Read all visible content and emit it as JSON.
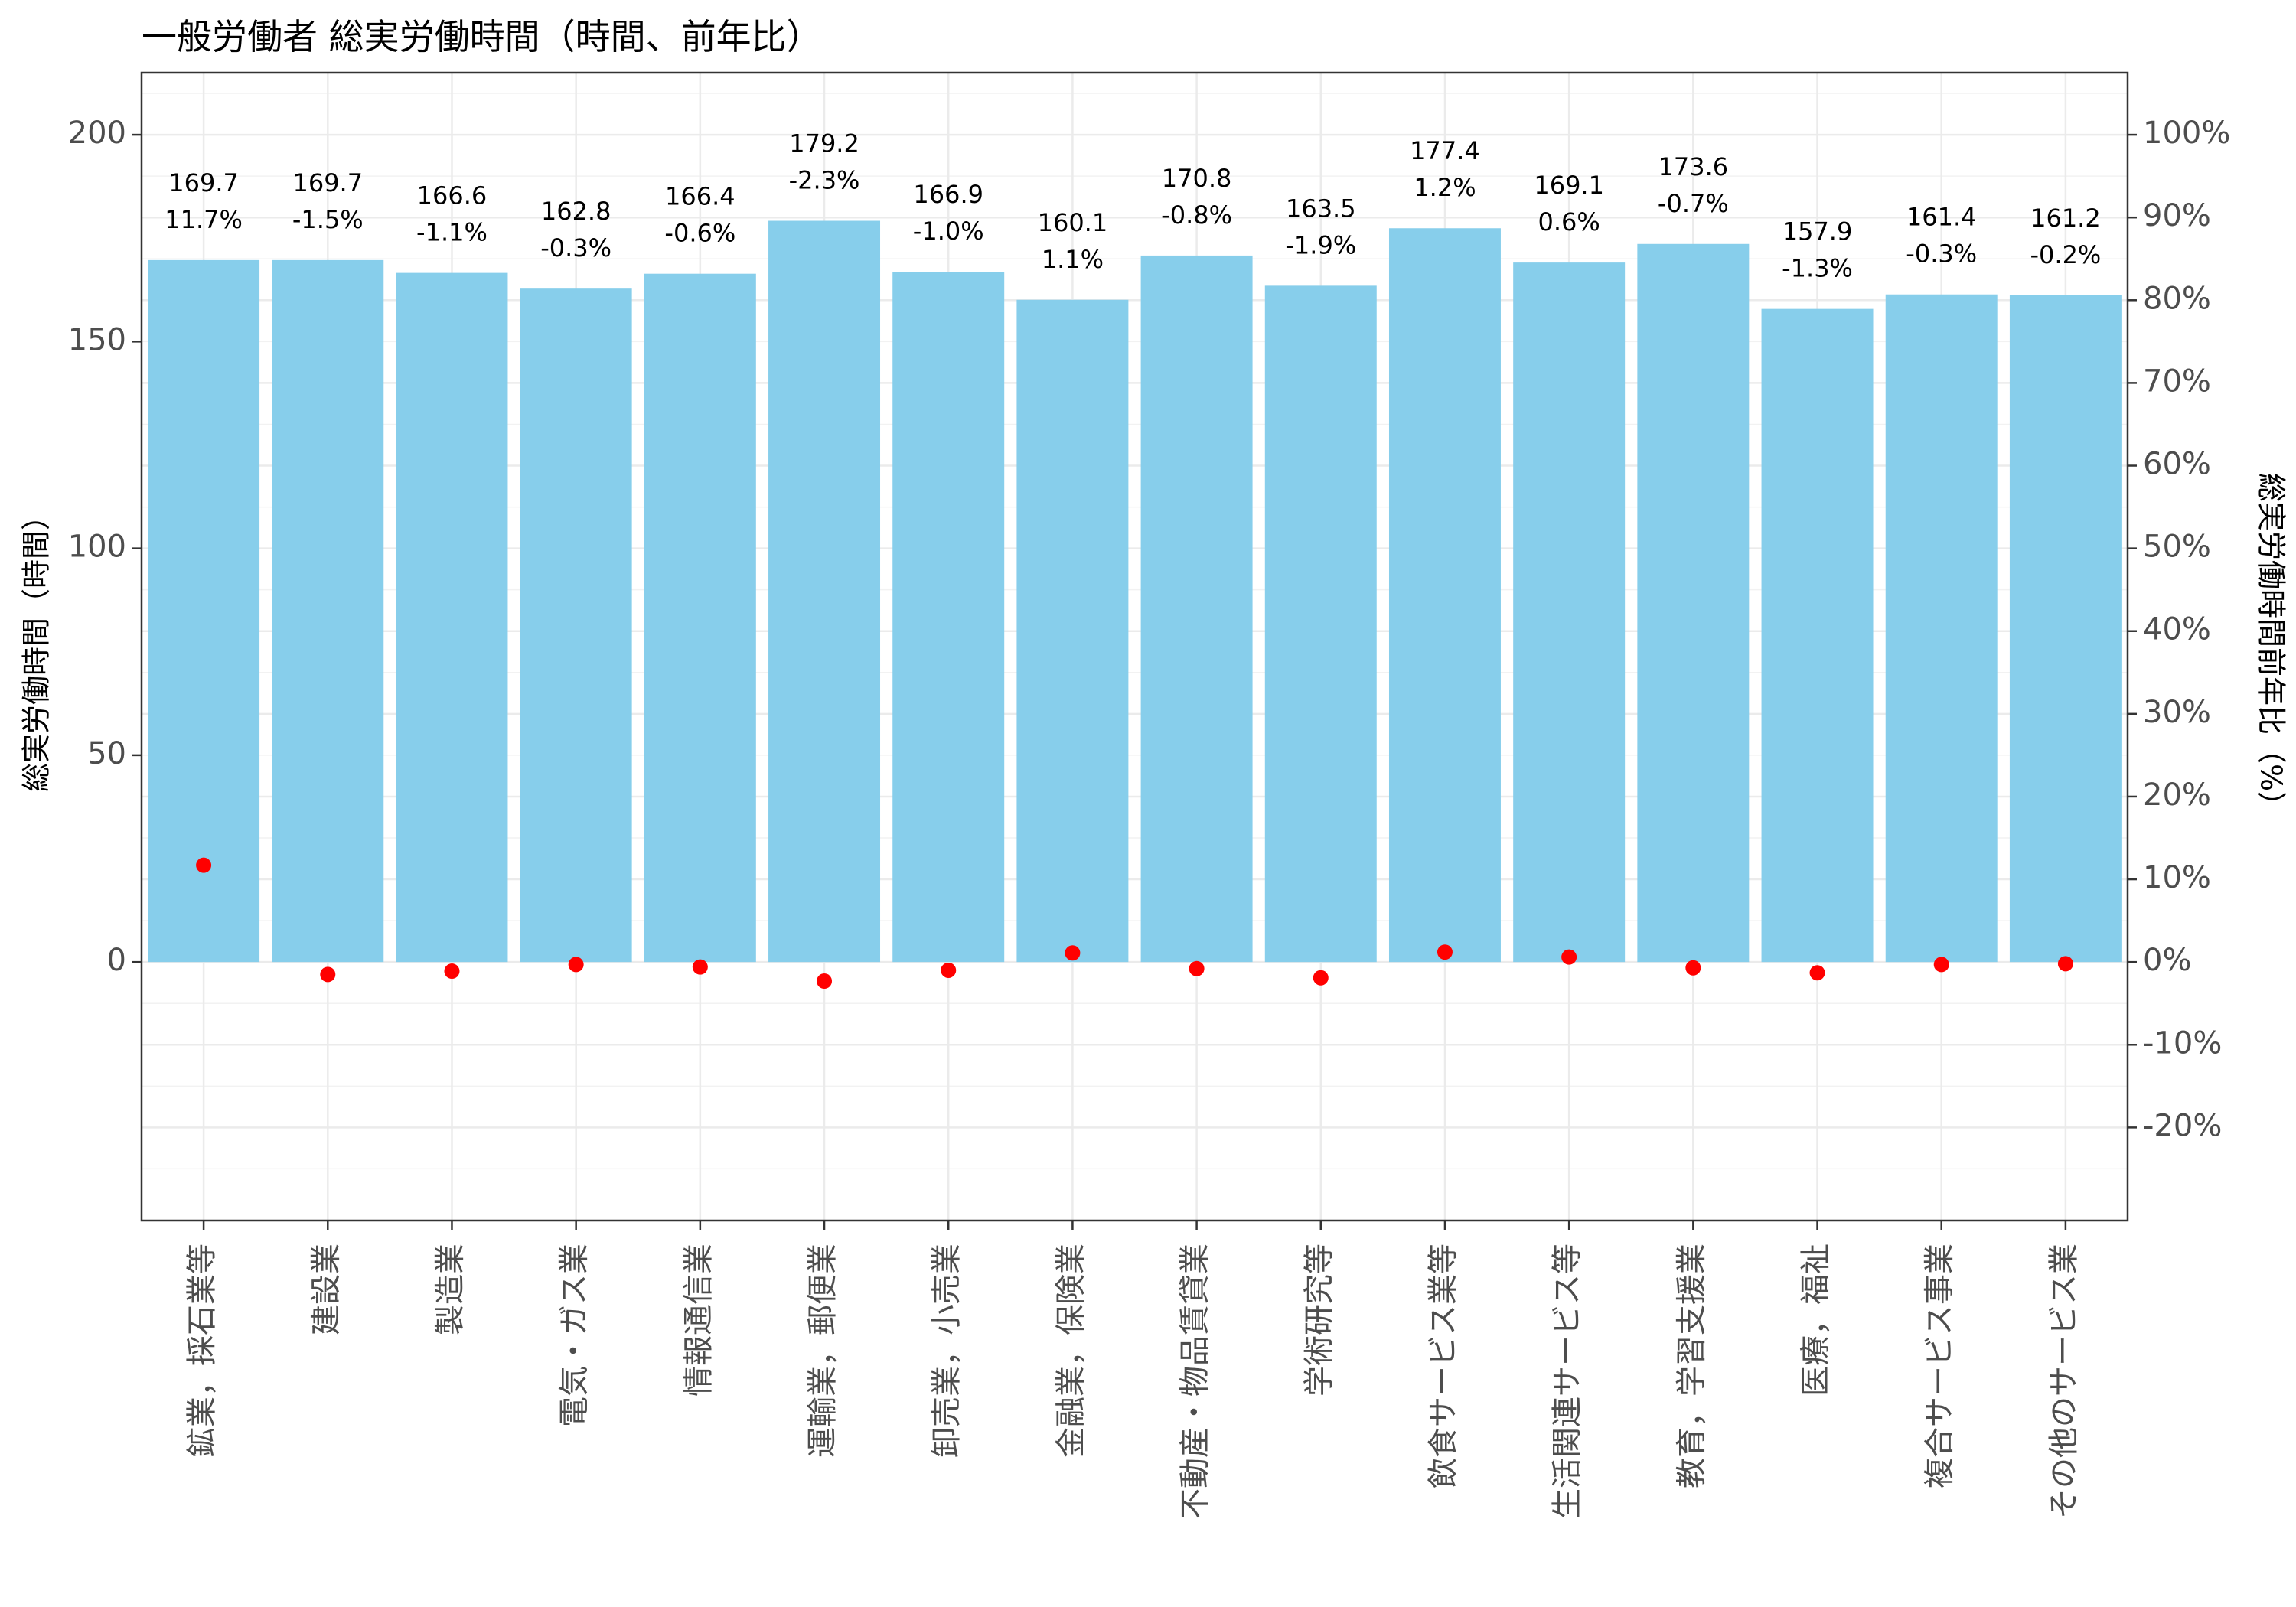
{
  "chart_data": {
    "type": "bar",
    "title": "一般労働者 総実労働時間（時間、前年比）",
    "ylabel": "総実労働時間（時間）",
    "y2label": "総実労働時間前年比（%）",
    "categories": [
      "鉱業，採石業等",
      "建設業",
      "製造業",
      "電気・ガス業",
      "情報通信業",
      "運輸業，郵便業",
      "卸売業，小売業",
      "金融業，保険業",
      "不動産・物品賃貸業",
      "学術研究等",
      "飲食サービス業等",
      "生活関連サービス等",
      "教育，学習支援業",
      "医療，福祉",
      "複合サービス事業",
      "その他のサービス業"
    ],
    "series": [
      {
        "values": [
          169.7,
          169.7,
          166.6,
          162.8,
          166.4,
          179.2,
          166.9,
          160.1,
          170.8,
          163.5,
          177.4,
          169.1,
          173.6,
          157.9,
          161.4,
          161.2
        ]
      },
      {
        "values": [
          11.7,
          -1.5,
          -1.1,
          -0.3,
          -0.6,
          -2.3,
          -1.0,
          1.1,
          -0.8,
          -1.9,
          1.2,
          0.6,
          -0.7,
          -1.3,
          -0.3,
          -0.2
        ]
      }
    ],
    "value_labels": [
      "169.7",
      "169.7",
      "166.6",
      "162.8",
      "166.4",
      "179.2",
      "166.9",
      "160.1",
      "170.8",
      "163.5",
      "177.4",
      "169.1",
      "173.6",
      "157.9",
      "161.4",
      "161.2"
    ],
    "pct_labels": [
      "11.7%",
      "-1.5%",
      "-1.1%",
      "-0.3%",
      "-0.6%",
      "-2.3%",
      "-1.0%",
      "1.1%",
      "-0.8%",
      "-1.9%",
      "1.2%",
      "0.6%",
      "-0.7%",
      "-1.3%",
      "-0.3%",
      "-0.2%"
    ],
    "y_ticks": [
      "0",
      "50",
      "100",
      "150",
      "200"
    ],
    "y2_ticks": [
      "-20%",
      "-10%",
      "0%",
      "10%",
      "20%",
      "30%",
      "40%",
      "50%",
      "60%",
      "70%",
      "80%",
      "90%",
      "100%"
    ],
    "ylim": [
      -62.5,
      215
    ],
    "y2lim": [
      -31.25,
      107.5
    ],
    "grid": true,
    "colors": {
      "bar": "#87CEEB",
      "point": "#FF0000",
      "grid": "#EBEBEB",
      "border": "#333333",
      "text": "#4D4D4D"
    }
  }
}
